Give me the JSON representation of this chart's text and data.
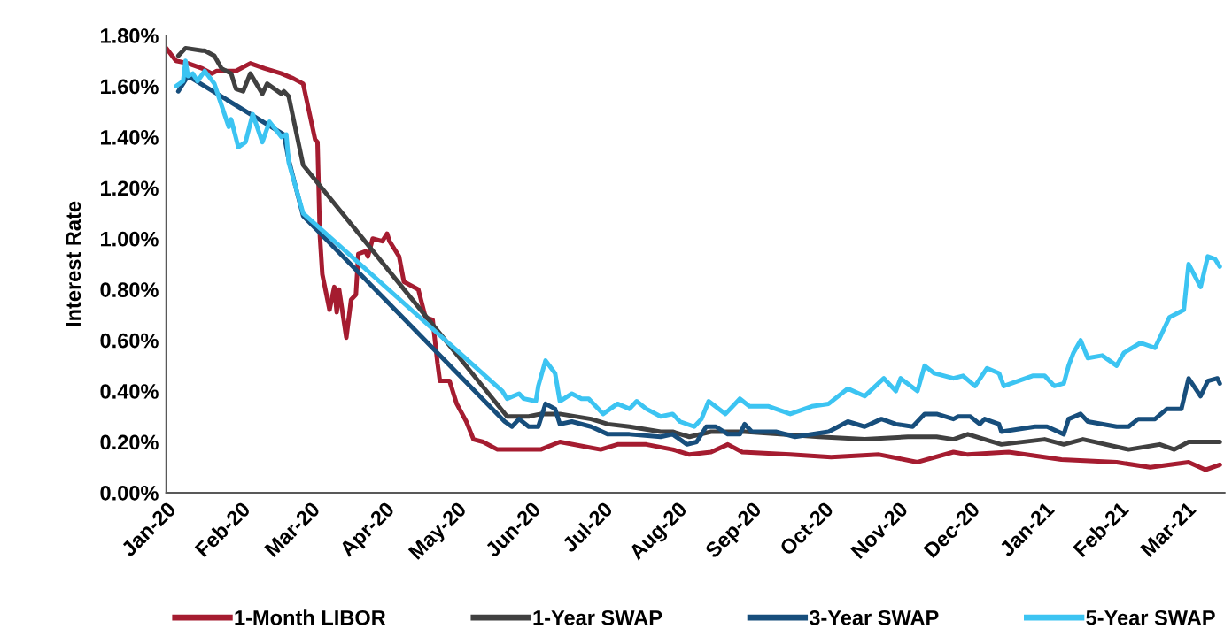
{
  "chart_data": {
    "type": "line",
    "ylabel": "Interest Rate",
    "xlim": [
      "2020-01-01",
      "2021-03-17"
    ],
    "ylim": [
      0,
      1.8
    ],
    "xticks": [
      {
        "value": "2020-01-01",
        "label": "Jan-20"
      },
      {
        "value": "2020-02-01",
        "label": "Feb-20"
      },
      {
        "value": "2020-03-01",
        "label": "Mar-20"
      },
      {
        "value": "2020-04-01",
        "label": "Apr-20"
      },
      {
        "value": "2020-05-01",
        "label": "May-20"
      },
      {
        "value": "2020-06-01",
        "label": "Jun-20"
      },
      {
        "value": "2020-07-01",
        "label": "Jul-20"
      },
      {
        "value": "2020-08-01",
        "label": "Aug-20"
      },
      {
        "value": "2020-09-01",
        "label": "Sep-20"
      },
      {
        "value": "2020-10-01",
        "label": "Oct-20"
      },
      {
        "value": "2020-11-01",
        "label": "Nov-20"
      },
      {
        "value": "2020-12-01",
        "label": "Dec-20"
      },
      {
        "value": "2021-01-01",
        "label": "Jan-21"
      },
      {
        "value": "2021-02-01",
        "label": "Feb-21"
      },
      {
        "value": "2021-03-01",
        "label": "Mar-21"
      }
    ],
    "yticks": [
      {
        "value": 0,
        "label": "0.00%"
      },
      {
        "value": 0.2,
        "label": "0.20%"
      },
      {
        "value": 0.4,
        "label": "0.40%"
      },
      {
        "value": 0.6,
        "label": "0.60%"
      },
      {
        "value": 0.8,
        "label": "0.80%"
      },
      {
        "value": 1.0,
        "label": "1.00%"
      },
      {
        "value": 1.2,
        "label": "1.20%"
      },
      {
        "value": 1.4,
        "label": "1.40%"
      },
      {
        "value": 1.6,
        "label": "1.60%"
      },
      {
        "value": 1.8,
        "label": "1.80%"
      }
    ],
    "grid": false,
    "legend": "bottom",
    "marker": "none",
    "line_style": "solid",
    "series": [
      {
        "name": "1-Month LIBOR",
        "color": "#a51c30",
        "x": [
          "2020-01-01",
          "2020-01-05",
          "2020-01-10",
          "2020-01-16",
          "2020-01-20",
          "2020-01-22",
          "2020-01-30",
          "2020-02-05",
          "2020-02-11",
          "2020-02-18",
          "2020-02-23",
          "2020-02-27",
          "2020-03-03",
          "2020-03-04",
          "2020-03-05",
          "2020-03-06",
          "2020-03-09",
          "2020-03-11",
          "2020-03-12",
          "2020-03-13",
          "2020-03-16",
          "2020-03-18",
          "2020-03-20",
          "2020-03-21",
          "2020-03-24",
          "2020-03-25",
          "2020-03-27",
          "2020-03-31",
          "2020-04-02",
          "2020-04-03",
          "2020-04-05",
          "2020-04-07",
          "2020-04-09",
          "2020-04-15",
          "2020-04-18",
          "2020-04-21",
          "2020-04-23",
          "2020-04-24",
          "2020-04-28",
          "2020-05-01",
          "2020-05-05",
          "2020-05-08",
          "2020-05-12",
          "2020-05-18",
          "2020-05-24",
          "2020-06-05",
          "2020-06-13",
          "2020-06-30",
          "2020-07-07",
          "2020-07-19",
          "2020-07-30",
          "2020-08-06",
          "2020-08-15",
          "2020-08-22",
          "2020-08-28",
          "2020-09-17",
          "2020-10-04",
          "2020-10-24",
          "2020-11-09",
          "2020-11-24",
          "2020-11-30",
          "2020-12-17",
          "2021-01-08",
          "2021-01-31",
          "2021-02-14",
          "2021-03-02",
          "2021-03-09",
          "2021-03-15"
        ],
        "values": [
          1.75,
          1.7,
          1.69,
          1.67,
          1.65,
          1.66,
          1.66,
          1.69,
          1.67,
          1.65,
          1.63,
          1.61,
          1.39,
          1.38,
          1.01,
          0.86,
          0.72,
          0.81,
          0.71,
          0.8,
          0.61,
          0.76,
          0.78,
          0.94,
          0.95,
          0.93,
          1.0,
          0.99,
          1.02,
          0.99,
          0.96,
          0.93,
          0.83,
          0.8,
          0.69,
          0.68,
          0.51,
          0.44,
          0.44,
          0.35,
          0.28,
          0.21,
          0.2,
          0.17,
          0.17,
          0.17,
          0.2,
          0.17,
          0.19,
          0.19,
          0.17,
          0.15,
          0.16,
          0.19,
          0.16,
          0.15,
          0.14,
          0.15,
          0.12,
          0.16,
          0.15,
          0.16,
          0.13,
          0.12,
          0.1,
          0.12,
          0.09,
          0.11
        ]
      },
      {
        "name": "1-Year SWAP",
        "color": "#404040",
        "x": [
          "2020-01-06",
          "2020-01-09",
          "2020-01-16",
          "2020-01-17",
          "2020-01-21",
          "2020-01-24",
          "2020-01-28",
          "2020-01-30",
          "2020-02-02",
          "2020-02-05",
          "2020-02-10",
          "2020-02-12",
          "2020-02-18",
          "2020-02-19",
          "2020-02-21",
          "2020-02-27",
          "2020-05-22",
          "2020-05-31",
          "2020-06-05",
          "2020-06-13",
          "2020-06-26",
          "2020-07-03",
          "2020-07-12",
          "2020-07-25",
          "2020-07-30",
          "2020-08-06",
          "2020-08-15",
          "2020-08-29",
          "2020-09-29",
          "2020-10-18",
          "2020-11-05",
          "2020-11-17",
          "2020-11-24",
          "2020-11-30",
          "2020-12-14",
          "2021-01-01",
          "2021-01-09",
          "2021-01-17",
          "2021-02-05",
          "2021-02-18",
          "2021-02-24",
          "2021-03-02",
          "2021-03-15"
        ],
        "values": [
          1.72,
          1.75,
          1.74,
          1.74,
          1.72,
          1.67,
          1.65,
          1.59,
          1.58,
          1.65,
          1.57,
          1.61,
          1.57,
          1.58,
          1.56,
          1.29,
          0.3,
          0.3,
          0.31,
          0.31,
          0.29,
          0.27,
          0.26,
          0.24,
          0.24,
          0.22,
          0.24,
          0.24,
          0.22,
          0.21,
          0.22,
          0.22,
          0.21,
          0.23,
          0.19,
          0.21,
          0.19,
          0.21,
          0.17,
          0.19,
          0.17,
          0.2,
          0.2
        ]
      },
      {
        "name": "3-Year SWAP",
        "color": "#174e7c",
        "x": [
          "2020-01-06",
          "2020-01-10",
          "2020-02-19",
          "2020-02-21",
          "2020-02-27",
          "2020-05-21",
          "2020-05-24",
          "2020-05-27",
          "2020-05-31",
          "2020-06-04",
          "2020-06-07",
          "2020-06-11",
          "2020-06-13",
          "2020-06-18",
          "2020-06-26",
          "2020-07-03",
          "2020-07-12",
          "2020-07-25",
          "2020-07-30",
          "2020-08-05",
          "2020-08-09",
          "2020-08-13",
          "2020-08-17",
          "2020-08-22",
          "2020-08-27",
          "2020-08-29",
          "2020-09-01",
          "2020-09-11",
          "2020-09-19",
          "2020-10-03",
          "2020-10-11",
          "2020-10-18",
          "2020-10-25",
          "2020-10-31",
          "2020-11-07",
          "2020-11-12",
          "2020-11-17",
          "2020-11-24",
          "2020-11-26",
          "2020-12-01",
          "2020-12-05",
          "2020-12-07",
          "2020-12-13",
          "2020-12-14",
          "2020-12-28",
          "2021-01-02",
          "2021-01-09",
          "2021-01-11",
          "2021-01-16",
          "2021-01-19",
          "2021-01-31",
          "2021-02-05",
          "2021-02-09",
          "2021-02-16",
          "2021-02-21",
          "2021-02-27",
          "2021-03-02",
          "2021-03-07",
          "2021-03-10",
          "2021-03-14",
          "2021-03-15"
        ],
        "values": [
          1.58,
          1.64,
          1.41,
          1.31,
          1.09,
          0.28,
          0.26,
          0.29,
          0.26,
          0.26,
          0.35,
          0.33,
          0.27,
          0.28,
          0.26,
          0.23,
          0.23,
          0.22,
          0.23,
          0.19,
          0.2,
          0.26,
          0.26,
          0.23,
          0.23,
          0.27,
          0.24,
          0.24,
          0.22,
          0.24,
          0.28,
          0.26,
          0.29,
          0.27,
          0.26,
          0.31,
          0.31,
          0.29,
          0.3,
          0.3,
          0.27,
          0.29,
          0.27,
          0.24,
          0.26,
          0.26,
          0.23,
          0.29,
          0.31,
          0.28,
          0.26,
          0.26,
          0.29,
          0.29,
          0.33,
          0.33,
          0.45,
          0.38,
          0.44,
          0.45,
          0.43
        ]
      },
      {
        "name": "5-Year SWAP",
        "color": "#3cc4f2",
        "x": [
          "2020-01-05",
          "2020-01-08",
          "2020-01-09",
          "2020-01-10",
          "2020-01-12",
          "2020-01-14",
          "2020-01-17",
          "2020-01-21",
          "2020-01-27",
          "2020-01-28",
          "2020-01-31",
          "2020-02-03",
          "2020-02-06",
          "2020-02-10",
          "2020-02-13",
          "2020-02-18",
          "2020-02-20",
          "2020-02-21",
          "2020-02-27",
          "2020-05-20",
          "2020-05-22",
          "2020-05-27",
          "2020-05-29",
          "2020-06-03",
          "2020-06-04",
          "2020-06-07",
          "2020-06-11",
          "2020-06-13",
          "2020-06-18",
          "2020-06-22",
          "2020-06-25",
          "2020-07-01",
          "2020-07-07",
          "2020-07-12",
          "2020-07-15",
          "2020-07-19",
          "2020-07-25",
          "2020-07-30",
          "2020-08-02",
          "2020-08-08",
          "2020-08-11",
          "2020-08-14",
          "2020-08-21",
          "2020-08-27",
          "2020-08-31",
          "2020-09-08",
          "2020-09-17",
          "2020-09-26",
          "2020-10-03",
          "2020-10-11",
          "2020-10-18",
          "2020-10-26",
          "2020-10-31",
          "2020-11-02",
          "2020-11-09",
          "2020-11-12",
          "2020-11-16",
          "2020-11-24",
          "2020-11-28",
          "2020-12-03",
          "2020-12-08",
          "2020-12-13",
          "2020-12-15",
          "2020-12-27",
          "2021-01-01",
          "2021-01-05",
          "2021-01-09",
          "2021-01-11",
          "2021-01-13",
          "2021-01-16",
          "2021-01-19",
          "2021-01-25",
          "2021-01-31",
          "2021-02-03",
          "2021-02-10",
          "2021-02-16",
          "2021-02-22",
          "2021-02-28",
          "2021-03-02",
          "2021-03-07",
          "2021-03-10",
          "2021-03-13",
          "2021-03-15"
        ],
        "values": [
          1.6,
          1.62,
          1.7,
          1.64,
          1.65,
          1.62,
          1.66,
          1.61,
          1.44,
          1.47,
          1.36,
          1.38,
          1.49,
          1.38,
          1.46,
          1.4,
          1.41,
          1.3,
          1.1,
          0.4,
          0.37,
          0.39,
          0.37,
          0.36,
          0.42,
          0.52,
          0.47,
          0.36,
          0.39,
          0.37,
          0.37,
          0.31,
          0.35,
          0.33,
          0.36,
          0.33,
          0.3,
          0.31,
          0.28,
          0.26,
          0.29,
          0.36,
          0.31,
          0.37,
          0.34,
          0.34,
          0.31,
          0.34,
          0.35,
          0.41,
          0.38,
          0.45,
          0.4,
          0.45,
          0.4,
          0.5,
          0.47,
          0.45,
          0.46,
          0.42,
          0.49,
          0.47,
          0.42,
          0.46,
          0.46,
          0.42,
          0.43,
          0.5,
          0.55,
          0.6,
          0.53,
          0.54,
          0.5,
          0.55,
          0.59,
          0.57,
          0.69,
          0.72,
          0.9,
          0.81,
          0.93,
          0.92,
          0.89
        ]
      }
    ]
  }
}
